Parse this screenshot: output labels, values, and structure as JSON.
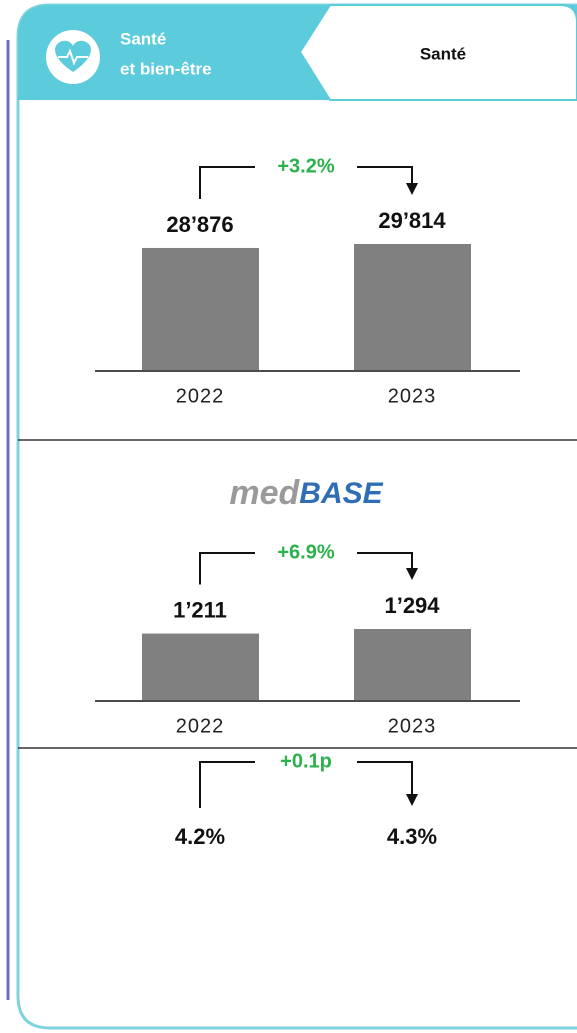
{
  "header": {
    "tab_title": [
      "Santé",
      "et bien-être"
    ],
    "tab_label": "Santé"
  },
  "logo": [
    "med",
    "BASE"
  ],
  "chart_data": [
    {
      "type": "bar",
      "categories": [
        "2022",
        "2023"
      ],
      "values": [
        28876,
        29814
      ],
      "value_labels": [
        "28’876",
        "29’814"
      ],
      "change": "+3.2%",
      "color": "#808080"
    },
    {
      "type": "bar",
      "categories": [
        "2022",
        "2023"
      ],
      "values": [
        1211,
        1294
      ],
      "value_labels": [
        "1’211",
        "1’294"
      ],
      "change": "+6.9%",
      "color": "#808080"
    },
    {
      "type": "kpi",
      "values": [
        4.2,
        4.3
      ],
      "value_labels": [
        "4.2%",
        "4.3%"
      ],
      "change": "+0.1p"
    }
  ]
}
